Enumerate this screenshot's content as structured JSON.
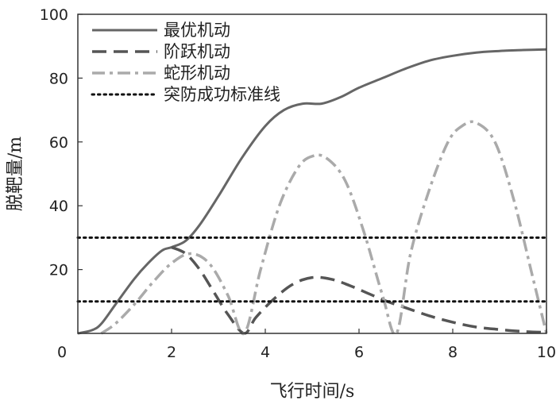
{
  "chart_data": {
    "type": "line",
    "xlabel": "飞行时间/s",
    "ylabel": "脱靶量/m",
    "xlim": [
      0,
      10
    ],
    "ylim": [
      0,
      100
    ],
    "x_ticks": [
      0,
      2,
      4,
      6,
      8,
      10
    ],
    "y_ticks": [
      20,
      40,
      60,
      80,
      100
    ],
    "legend": "top-left",
    "grid": false,
    "series": [
      {
        "name": "最优机动",
        "style": "solid",
        "color": "#666666",
        "x": [
          0,
          0.3,
          0.5,
          0.8,
          1.2,
          1.5,
          1.8,
          2.0,
          2.3,
          2.6,
          3.0,
          3.5,
          4.0,
          4.4,
          4.8,
          5.2,
          5.6,
          6.0,
          6.5,
          7.0,
          7.5,
          8.0,
          8.5,
          9.0,
          9.5,
          10.0
        ],
        "y": [
          0,
          1,
          3,
          9,
          17,
          22,
          26,
          27,
          29,
          34,
          43,
          55,
          65,
          70,
          72,
          72,
          74,
          77,
          80,
          83,
          85.5,
          87,
          88,
          88.5,
          88.8,
          89
        ]
      },
      {
        "name": "阶跃机动",
        "style": "dashed",
        "color": "#555555",
        "x": [
          2.0,
          2.3,
          2.6,
          2.9,
          3.2,
          3.55,
          3.8,
          4.2,
          4.6,
          5.0,
          5.4,
          5.8,
          6.2,
          6.6,
          7.0,
          7.5,
          8.0,
          8.5,
          9.0,
          9.5,
          10.0
        ],
        "y": [
          27,
          25,
          20,
          13,
          6,
          0,
          5,
          11,
          15.5,
          17.5,
          17,
          15,
          12.5,
          10,
          8,
          5.5,
          3.5,
          2,
          1.2,
          0.6,
          0.3
        ]
      },
      {
        "name": "蛇形机动",
        "style": "dashdot",
        "color": "#aaaaaa",
        "x": [
          0.5,
          0.8,
          1.2,
          1.6,
          2.0,
          2.4,
          2.8,
          3.2,
          3.55,
          3.9,
          4.3,
          4.7,
          5.0,
          5.3,
          5.7,
          6.1,
          6.5,
          6.8,
          7.1,
          7.5,
          7.9,
          8.2,
          8.5,
          8.9,
          9.3,
          9.7,
          10.0
        ],
        "y": [
          0,
          3,
          9,
          16,
          22,
          25,
          22,
          12,
          0,
          20,
          40,
          52,
          55.5,
          55,
          48,
          32,
          12,
          0,
          25,
          45,
          60,
          65,
          66,
          60,
          42,
          18,
          0
        ]
      },
      {
        "name": "突防成功标准线",
        "style": "dotted",
        "color": "#111111",
        "x": [
          0,
          10
        ],
        "y": [
          30,
          30
        ]
      },
      {
        "name": "",
        "style": "dotted",
        "color": "#111111",
        "x": [
          0,
          10
        ],
        "y": [
          10,
          10
        ]
      }
    ]
  }
}
